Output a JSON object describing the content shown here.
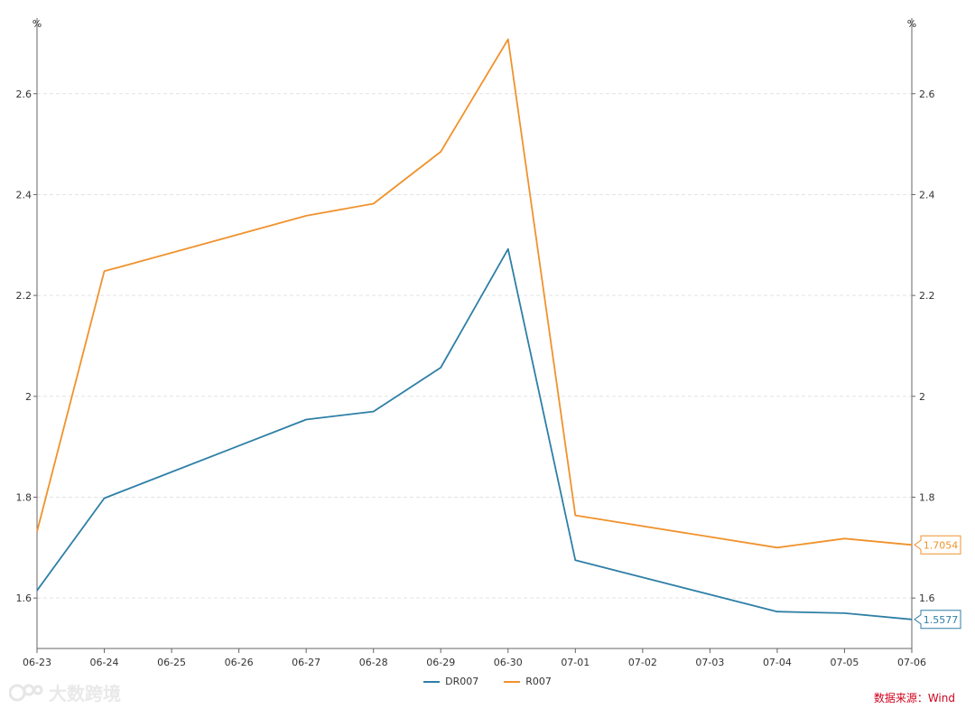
{
  "chart_data": {
    "type": "line",
    "categories": [
      "06-23",
      "06-24",
      "06-25",
      "06-26",
      "06-27",
      "06-28",
      "06-29",
      "06-30",
      "07-01",
      "07-02",
      "07-03",
      "07-04",
      "07-05",
      "07-06"
    ],
    "series": [
      {
        "name": "DR007",
        "color": "#2e7fa6",
        "values": [
          1.615,
          1.798,
          null,
          null,
          1.954,
          1.97,
          2.057,
          2.292,
          1.675,
          null,
          null,
          1.573,
          1.57,
          1.5577
        ]
      },
      {
        "name": "R007",
        "color": "#f0922c",
        "values": [
          1.732,
          2.248,
          null,
          null,
          2.358,
          2.382,
          2.485,
          2.708,
          1.764,
          null,
          null,
          1.7,
          1.718,
          1.7054
        ]
      }
    ],
    "connect_gaps": true,
    "y_unit_left": "%",
    "y_unit_right": "%",
    "ylim": [
      1.5,
      2.75
    ],
    "yticks": [
      1.6,
      1.8,
      2,
      2.2,
      2.4,
      2.6
    ],
    "ytick_labels": [
      "1.6",
      "1.8",
      "2",
      "2.2",
      "2.4",
      "2.6"
    ],
    "end_labels": [
      "1.5577",
      "1.7054"
    ],
    "grid": true,
    "legend_position": "bottom-center"
  },
  "source_text": "数据来源：Wind",
  "watermark_text": "大数跨境"
}
